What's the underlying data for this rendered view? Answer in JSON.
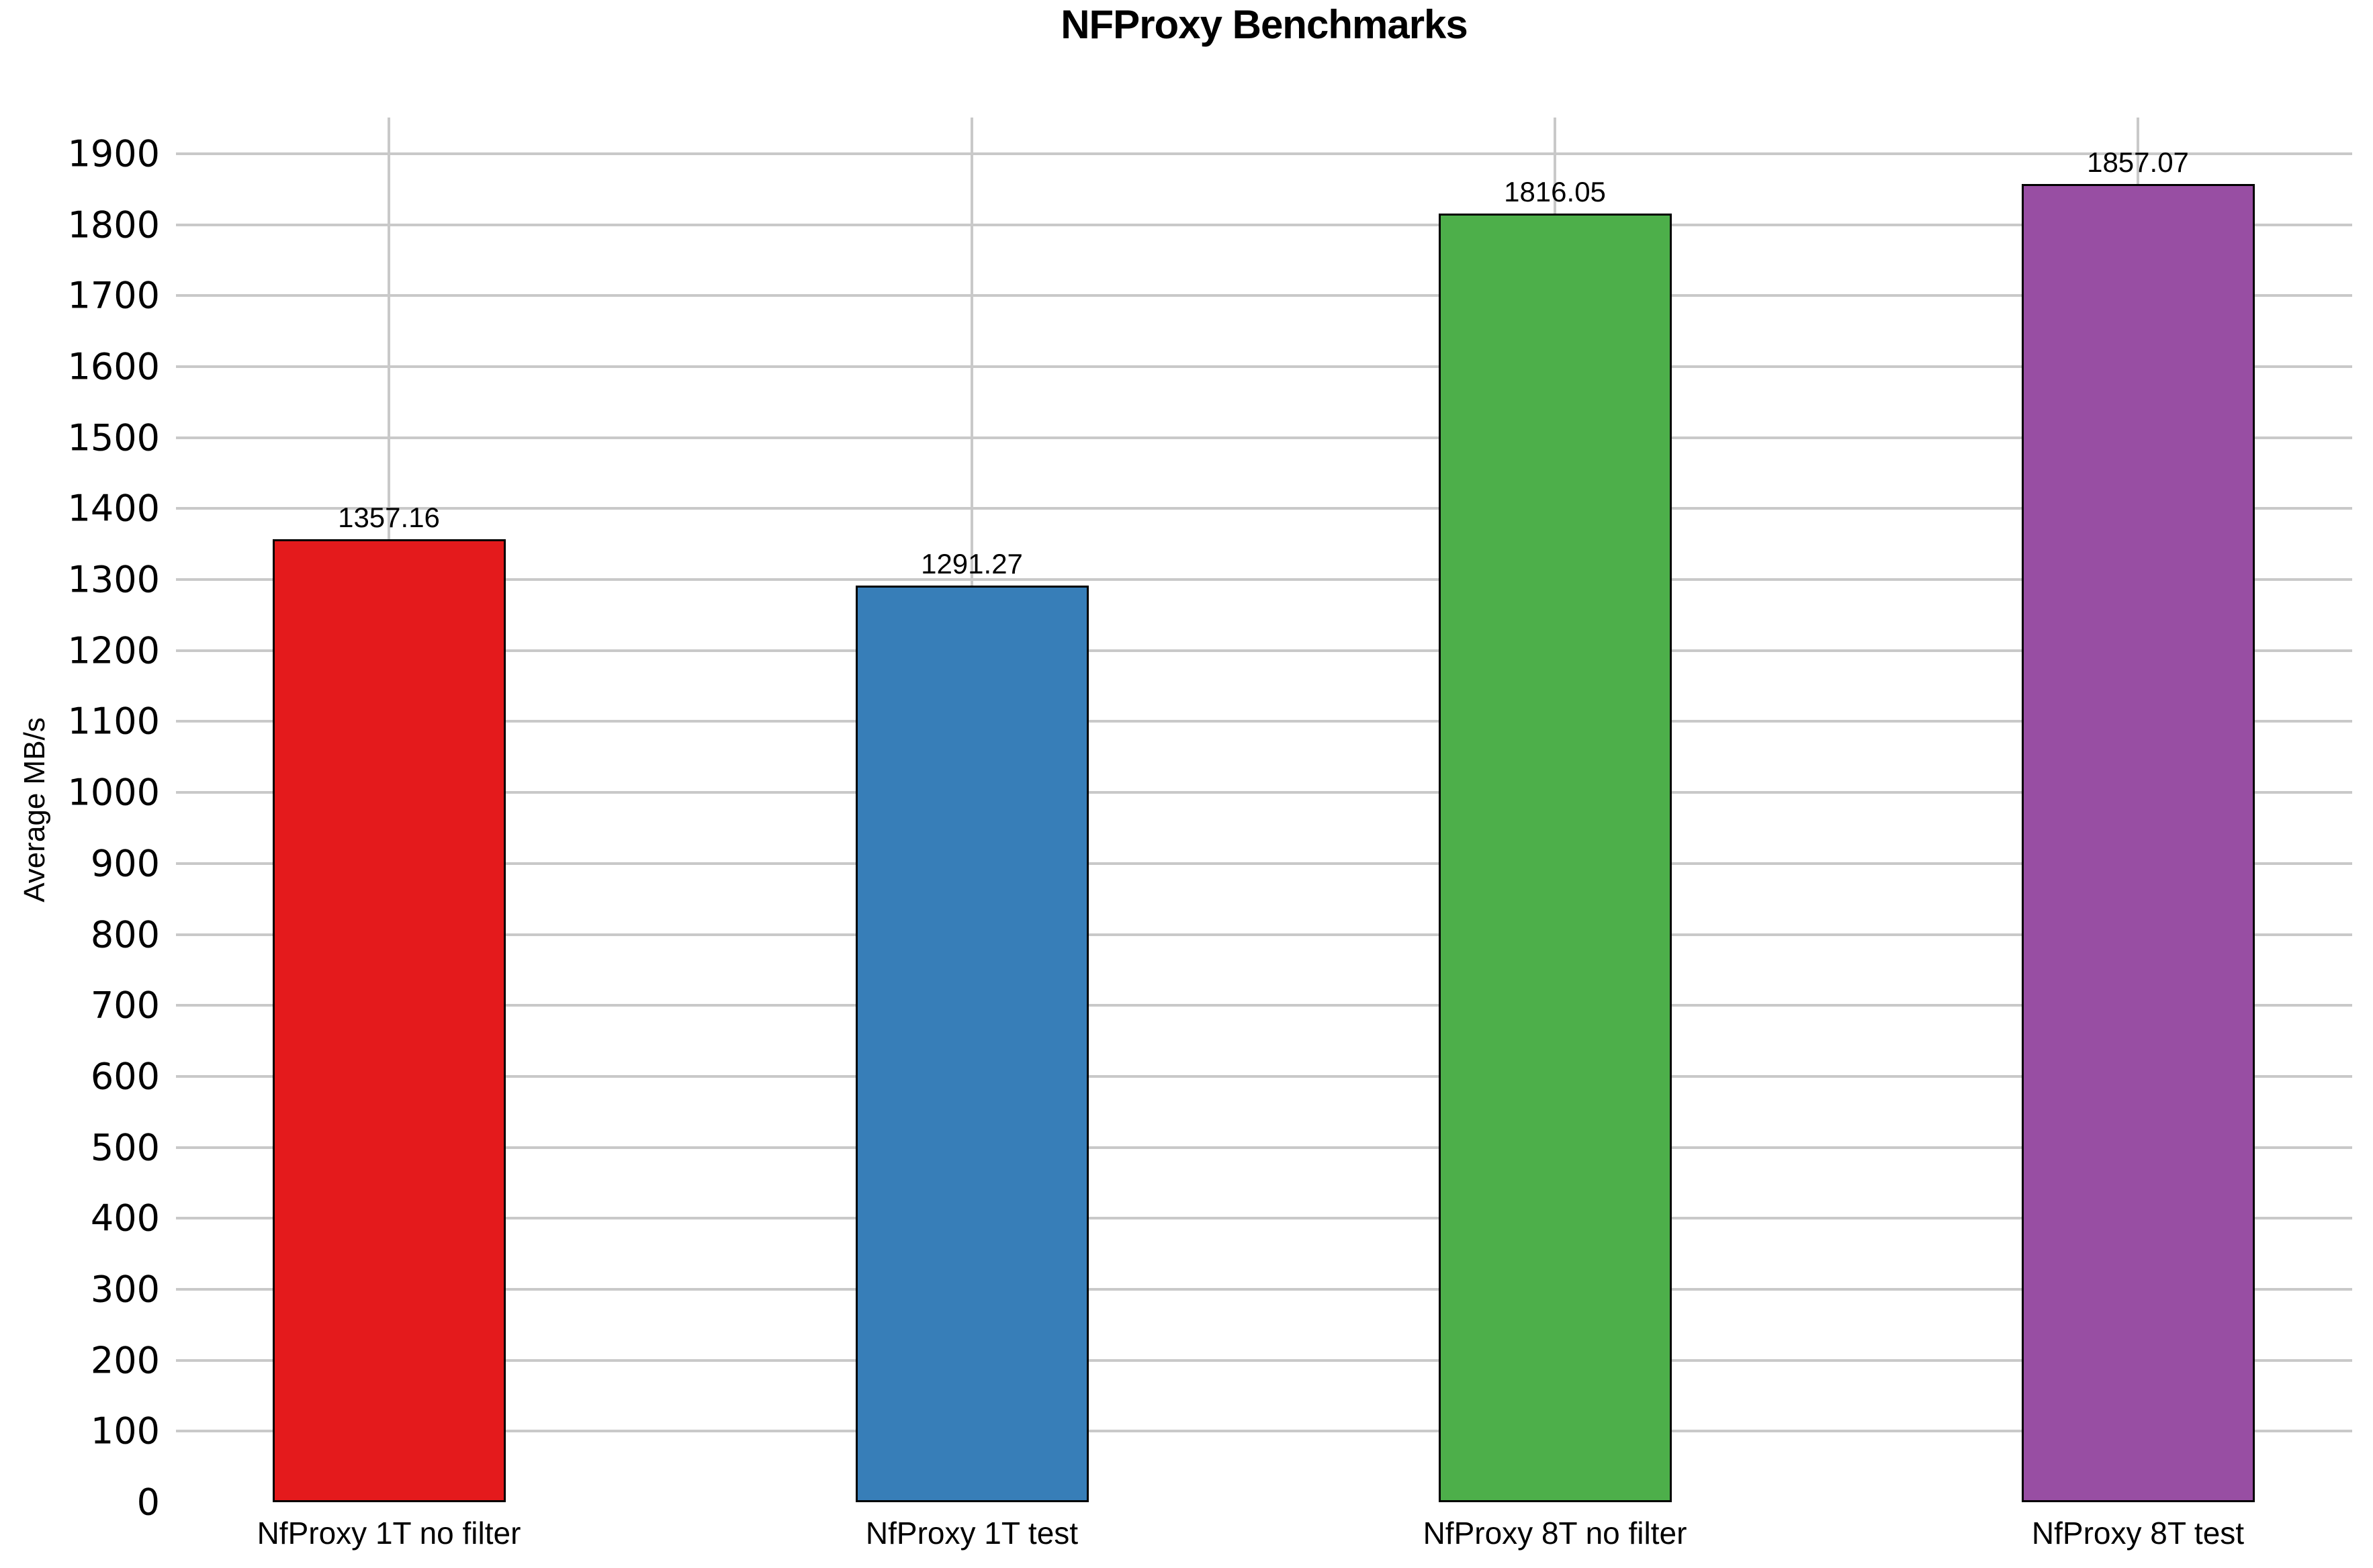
{
  "title": "NFProxy Benchmarks",
  "chart_data": {
    "type": "bar",
    "title": "NFProxy Benchmarks",
    "xlabel": "",
    "ylabel": "Average MB/s",
    "categories": [
      "NfProxy 1T no filter",
      "NfProxy 1T test",
      "NfProxy 8T no filter",
      "NfProxy 8T test"
    ],
    "values": [
      1357.16,
      1291.27,
      1816.05,
      1857.07
    ],
    "value_labels": [
      "1357.16",
      "1291.27",
      "1816.05",
      "1857.07"
    ],
    "bar_colors": [
      "#e41a1c",
      "#377eb8",
      "#4daf4a",
      "#984ea3"
    ],
    "bar_border_color": "#000000",
    "yticks": [
      0,
      100,
      200,
      300,
      400,
      500,
      600,
      700,
      800,
      900,
      1000,
      1100,
      1200,
      1300,
      1400,
      1500,
      1600,
      1700,
      1800,
      1900
    ],
    "ylim": [
      0,
      1950
    ],
    "grid": "on",
    "gridline_color": "#c9c9c9",
    "legend": "none",
    "background_color": "#ffffff",
    "text_color": "#000000"
  }
}
